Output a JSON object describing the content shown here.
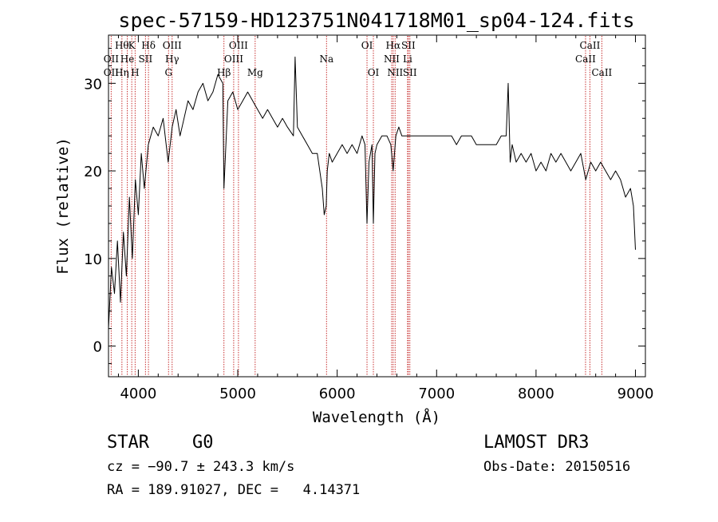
{
  "chart_data": {
    "type": "line",
    "title": "spec-57159-HD123751N041718M01_sp04-124.fits",
    "xlabel": "Wavelength (Å)",
    "ylabel": "Flux (relative)",
    "xlim": [
      3700,
      9100
    ],
    "ylim": [
      -3.5,
      35.5
    ],
    "x_ticks": [
      4000,
      5000,
      6000,
      7000,
      8000,
      9000
    ],
    "y_ticks": [
      0,
      10,
      20,
      30
    ],
    "grid": false,
    "line_color": "#000000",
    "marker_color": "#c83232",
    "series": [
      {
        "x": [
          3700,
          3730,
          3760,
          3790,
          3820,
          3850,
          3880,
          3910,
          3940,
          3970,
          4000,
          4030,
          4060,
          4100,
          4150,
          4200,
          4250,
          4300,
          4340,
          4380,
          4420,
          4460,
          4500,
          4550,
          4600,
          4650,
          4700,
          4750,
          4800,
          4850,
          4861,
          4900,
          4950,
          5000,
          5050,
          5100,
          5150,
          5200,
          5250,
          5300,
          5350,
          5400,
          5450,
          5500,
          5560,
          5577,
          5600,
          5650,
          5700,
          5750,
          5800,
          5850,
          5870,
          5890,
          5900,
          5920,
          5950,
          6000,
          6050,
          6100,
          6150,
          6200,
          6250,
          6280,
          6300,
          6320,
          6350,
          6364,
          6380,
          6400,
          6450,
          6500,
          6540,
          6563,
          6590,
          6620,
          6650,
          6700,
          6750,
          6800,
          6850,
          6900,
          6950,
          7000,
          7050,
          7100,
          7150,
          7200,
          7250,
          7300,
          7350,
          7400,
          7450,
          7500,
          7550,
          7600,
          7650,
          7700,
          7720,
          7740,
          7760,
          7800,
          7850,
          7900,
          7950,
          8000,
          8050,
          8100,
          8150,
          8200,
          8250,
          8300,
          8350,
          8400,
          8450,
          8500,
          8550,
          8600,
          8650,
          8700,
          8750,
          8800,
          8850,
          8900,
          8950,
          8980,
          9000
        ],
        "y": [
          2,
          9,
          6,
          12,
          5,
          13,
          8,
          17,
          10,
          19,
          15,
          22,
          18,
          23,
          25,
          24,
          26,
          21,
          25,
          27,
          24,
          26,
          28,
          27,
          29,
          30,
          28,
          29,
          31,
          30,
          18,
          28,
          29,
          27,
          28,
          29,
          28,
          27,
          26,
          27,
          26,
          25,
          26,
          25,
          24,
          33,
          25,
          24,
          23,
          22,
          22,
          18,
          15,
          16,
          20,
          22,
          21,
          22,
          23,
          22,
          23,
          22,
          24,
          23,
          14,
          21,
          23,
          14,
          22,
          23,
          24,
          24,
          23,
          20,
          24,
          25,
          24,
          24,
          24,
          24,
          24,
          24,
          24,
          24,
          24,
          24,
          24,
          23,
          24,
          24,
          24,
          23,
          23,
          23,
          23,
          23,
          24,
          24,
          30,
          21,
          23,
          21,
          22,
          21,
          22,
          20,
          21,
          20,
          22,
          21,
          22,
          21,
          20,
          21,
          22,
          19,
          21,
          20,
          21,
          20,
          19,
          20,
          19,
          17,
          18,
          16,
          11
        ]
      }
    ],
    "line_markers": [
      {
        "wavelength": 3835,
        "label": "Hθ",
        "tier": 0
      },
      {
        "wavelength": 3934,
        "label": "K",
        "tier": 0
      },
      {
        "wavelength": 4102,
        "label": "Hδ",
        "tier": 0
      },
      {
        "wavelength": 4340,
        "label": "OIII",
        "tier": 0
      },
      {
        "wavelength": 5007,
        "label": "OIII",
        "tier": 0
      },
      {
        "wavelength": 6300,
        "label": "OI",
        "tier": 0
      },
      {
        "wavelength": 6563,
        "label": "Hα",
        "tier": 0
      },
      {
        "wavelength": 6716,
        "label": "SII",
        "tier": 0
      },
      {
        "wavelength": 8542,
        "label": "CaII",
        "tier": 0
      },
      {
        "wavelength": 3727,
        "label": "OII",
        "tier": 1
      },
      {
        "wavelength": 3889,
        "label": "He",
        "tier": 1
      },
      {
        "wavelength": 4072,
        "label": "SII",
        "tier": 1
      },
      {
        "wavelength": 4340,
        "label": "Hγ",
        "tier": 1
      },
      {
        "wavelength": 4959,
        "label": "OIII",
        "tier": 1
      },
      {
        "wavelength": 5893,
        "label": "Na",
        "tier": 1
      },
      {
        "wavelength": 6548,
        "label": "NII",
        "tier": 1
      },
      {
        "wavelength": 6708,
        "label": "Li",
        "tier": 1
      },
      {
        "wavelength": 8498,
        "label": "CaII",
        "tier": 1
      },
      {
        "wavelength": 3727,
        "label": "OII",
        "tier": 2
      },
      {
        "wavelength": 3835,
        "label": "Hη",
        "tier": 2
      },
      {
        "wavelength": 3968,
        "label": "H",
        "tier": 2
      },
      {
        "wavelength": 4304,
        "label": "G",
        "tier": 2
      },
      {
        "wavelength": 4861,
        "label": "Hβ",
        "tier": 2
      },
      {
        "wavelength": 5175,
        "label": "Mg",
        "tier": 2
      },
      {
        "wavelength": 6364,
        "label": "OI",
        "tier": 2
      },
      {
        "wavelength": 6583,
        "label": "NII",
        "tier": 2
      },
      {
        "wavelength": 6731,
        "label": "SII",
        "tier": 2
      },
      {
        "wavelength": 8662,
        "label": "CaII",
        "tier": 2
      }
    ]
  },
  "info": {
    "object_class": "STAR",
    "subclass": "G0",
    "survey": "LAMOST DR3",
    "cz": "cz = −90.7 ± 243.3 km/s",
    "obs_date": "Obs-Date: 20150516",
    "coords": "RA = 189.91027, DEC =   4.14371"
  }
}
